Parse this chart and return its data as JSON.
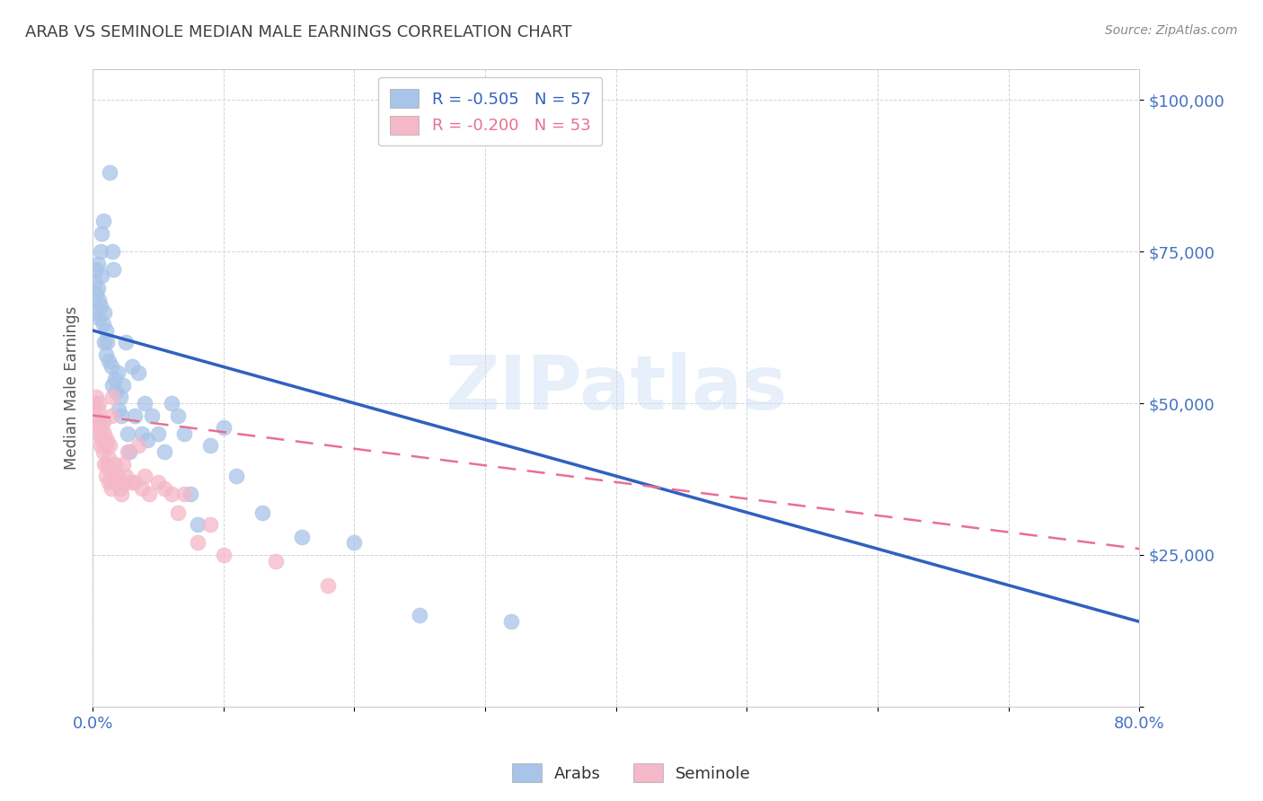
{
  "title": "ARAB VS SEMINOLE MEDIAN MALE EARNINGS CORRELATION CHART",
  "source": "Source: ZipAtlas.com",
  "ylabel": "Median Male Earnings",
  "watermark": "ZIPatlas",
  "legend_arab": "R = -0.505   N = 57",
  "legend_seminole": "R = -0.200   N = 53",
  "legend_label_arab": "Arabs",
  "legend_label_seminole": "Seminole",
  "arab_color": "#a8c4e8",
  "seminole_color": "#f4b8c8",
  "arab_line_color": "#3060c0",
  "seminole_line_color": "#e87090",
  "title_color": "#404040",
  "tick_label_color": "#4472c4",
  "background_color": "#ffffff",
  "arab_scatter_x": [
    0.001,
    0.002,
    0.003,
    0.003,
    0.004,
    0.004,
    0.005,
    0.005,
    0.006,
    0.006,
    0.007,
    0.007,
    0.008,
    0.008,
    0.009,
    0.009,
    0.01,
    0.01,
    0.011,
    0.012,
    0.013,
    0.014,
    0.015,
    0.015,
    0.016,
    0.017,
    0.018,
    0.019,
    0.02,
    0.021,
    0.022,
    0.023,
    0.025,
    0.027,
    0.028,
    0.03,
    0.032,
    0.035,
    0.038,
    0.04,
    0.042,
    0.045,
    0.05,
    0.055,
    0.06,
    0.065,
    0.07,
    0.075,
    0.08,
    0.09,
    0.1,
    0.11,
    0.13,
    0.16,
    0.2,
    0.25,
    0.32
  ],
  "arab_scatter_y": [
    65000,
    70000,
    68000,
    72000,
    69000,
    73000,
    67000,
    64000,
    66000,
    75000,
    71000,
    78000,
    63000,
    80000,
    60000,
    65000,
    58000,
    62000,
    60000,
    57000,
    88000,
    56000,
    53000,
    75000,
    72000,
    54000,
    52000,
    55000,
    49000,
    51000,
    48000,
    53000,
    60000,
    45000,
    42000,
    56000,
    48000,
    55000,
    45000,
    50000,
    44000,
    48000,
    45000,
    42000,
    50000,
    48000,
    45000,
    35000,
    30000,
    43000,
    46000,
    38000,
    32000,
    28000,
    27000,
    15000,
    14000
  ],
  "seminole_scatter_x": [
    0.001,
    0.002,
    0.003,
    0.003,
    0.004,
    0.004,
    0.005,
    0.005,
    0.006,
    0.007,
    0.007,
    0.008,
    0.008,
    0.009,
    0.009,
    0.01,
    0.01,
    0.011,
    0.011,
    0.012,
    0.012,
    0.013,
    0.013,
    0.014,
    0.014,
    0.015,
    0.016,
    0.017,
    0.018,
    0.019,
    0.02,
    0.021,
    0.022,
    0.023,
    0.024,
    0.025,
    0.027,
    0.03,
    0.032,
    0.035,
    0.038,
    0.04,
    0.043,
    0.05,
    0.055,
    0.06,
    0.065,
    0.07,
    0.08,
    0.09,
    0.1,
    0.14,
    0.18
  ],
  "seminole_scatter_y": [
    50000,
    48000,
    51000,
    46000,
    49000,
    47000,
    45000,
    50000,
    43000,
    46000,
    44000,
    47000,
    42000,
    40000,
    45000,
    38000,
    43000,
    40000,
    44000,
    37000,
    41000,
    39000,
    43000,
    36000,
    48000,
    51000,
    38000,
    40000,
    37000,
    38000,
    37000,
    36000,
    35000,
    40000,
    37000,
    38000,
    42000,
    37000,
    37000,
    43000,
    36000,
    38000,
    35000,
    37000,
    36000,
    35000,
    32000,
    35000,
    27000,
    30000,
    25000,
    24000,
    20000
  ],
  "arab_line_x": [
    0.0,
    0.8
  ],
  "arab_line_y": [
    62000,
    14000
  ],
  "seminole_line_x": [
    0.0,
    0.8
  ],
  "seminole_line_y": [
    48000,
    26000
  ],
  "xmin": 0.0,
  "xmax": 0.8,
  "ymin": 0,
  "ymax": 105000,
  "y_ticks": [
    0,
    25000,
    50000,
    75000,
    100000
  ],
  "y_tick_labels": [
    "",
    "$25,000",
    "$50,000",
    "$75,000",
    "$100,000"
  ]
}
